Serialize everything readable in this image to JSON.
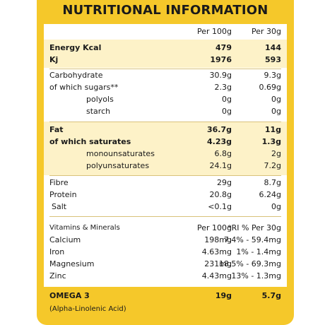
{
  "title": "NUTRITIONAL INFORMATION",
  "header": {
    "col1": "Per 100g",
    "col2": "Per 30g"
  },
  "energy": [
    {
      "label": "Energy Kcal",
      "per100": "479",
      "per30": "144"
    },
    {
      "label": "Kj",
      "per100": "1976",
      "per30": "593"
    }
  ],
  "carbs": [
    {
      "label": "Carbohydrate",
      "per100": "30.9g",
      "per30": "9.3g"
    },
    {
      "label": "of which sugars**",
      "per100": "2.3g",
      "per30": "0.69g"
    },
    {
      "label": "polyols",
      "per100": "0g",
      "per30": "0g"
    },
    {
      "label": "starch",
      "per100": "0g",
      "per30": "0g"
    }
  ],
  "fat": [
    {
      "label": "Fat",
      "per100": "36.7g",
      "per30": "11g"
    },
    {
      "label": "of which saturates",
      "per100": "4.23g",
      "per30": "1.3g"
    },
    {
      "label": "monounsaturates",
      "per100": "6.8g",
      "per30": "2g"
    },
    {
      "label": "polyunsaturates",
      "per100": "24.1g",
      "per30": "7.2g"
    }
  ],
  "other": [
    {
      "label": "Fibre",
      "per100": "29g",
      "per30": "8.7g"
    },
    {
      "label": "Protein",
      "per100": "20.8g",
      "per30": "6.24g"
    },
    {
      "label": "Salt",
      "per100": "<0.1g",
      "per30": "0g"
    }
  ],
  "vitamins_header": {
    "label": "Vitamins & Minerals",
    "col1": "Per 100g",
    "col2": "*RI % Per 30g"
  },
  "vitamins": [
    {
      "label": "Calcium",
      "per100": "198mg",
      "per30": "7.4% - 59.4mg"
    },
    {
      "label": "Iron",
      "per100": "4.63mg",
      "per30": "1% - 1.4mg"
    },
    {
      "label": "Magnesium",
      "per100": "231mg",
      "per30": "18.5% - 69.3mg"
    },
    {
      "label": "Zinc",
      "per100": "4.43mg",
      "per30": "13% - 1.3mg"
    }
  ],
  "omega": {
    "label": "OMEGA 3",
    "sublabel": "(Alpha-Linolenic Acid)",
    "per100": "19g",
    "per30": "5.7g"
  }
}
